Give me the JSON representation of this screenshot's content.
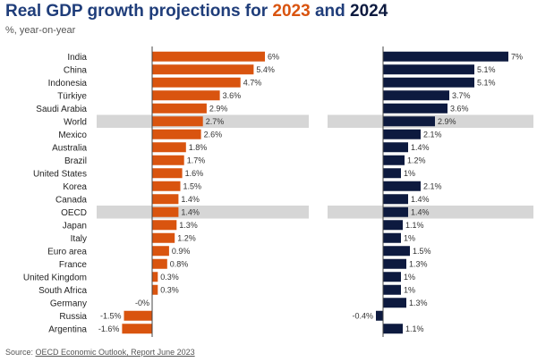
{
  "title": {
    "prefix": "Real GDP growth projections for ",
    "year1": "2023",
    "and": " and ",
    "year2": "2024"
  },
  "subtitle": "%, year-on-year",
  "source": {
    "prefix": "Source: ",
    "link": "OECD Economic Outlook, Report June 2023"
  },
  "chart_data": {
    "type": "bar",
    "orientation": "horizontal",
    "categories": [
      "India",
      "China",
      "Indonesia",
      "Türkiye",
      "Saudi Arabia",
      "World",
      "Mexico",
      "Australia",
      "Brazil",
      "United States",
      "Korea",
      "Canada",
      "OECD",
      "Japan",
      "Italy",
      "Euro area",
      "France",
      "United Kingdom",
      "South Africa",
      "Germany",
      "Russia",
      "Argentina"
    ],
    "highlighted": [
      "World",
      "OECD"
    ],
    "series": [
      {
        "name": "2023",
        "color": "#d9540f",
        "values": [
          6,
          5.4,
          4.7,
          3.6,
          2.9,
          2.7,
          2.6,
          1.8,
          1.7,
          1.6,
          1.5,
          1.4,
          1.4,
          1.3,
          1.2,
          0.9,
          0.8,
          0.3,
          0.3,
          -0.0,
          -1.5,
          -1.6
        ],
        "labels": [
          "6%",
          "5.4%",
          "4.7%",
          "3.6%",
          "2.9%",
          "2.7%",
          "2.6%",
          "1.8%",
          "1.7%",
          "1.6%",
          "1.5%",
          "1.4%",
          "1.4%",
          "1.3%",
          "1.2%",
          "0.9%",
          "0.8%",
          "0.3%",
          "0.3%",
          "-0%",
          "-1.5%",
          "-1.6%"
        ]
      },
      {
        "name": "2024",
        "color": "#0d1a3f",
        "values": [
          7,
          5.1,
          5.1,
          3.7,
          3.6,
          2.9,
          2.1,
          1.4,
          1.2,
          1,
          2.1,
          1.4,
          1.4,
          1.1,
          1,
          1.5,
          1.3,
          1,
          1,
          1.3,
          -0.4,
          1.1
        ],
        "labels": [
          "7%",
          "5.1%",
          "5.1%",
          "3.7%",
          "3.6%",
          "2.9%",
          "2.1%",
          "1.4%",
          "1.2%",
          "1%",
          "2.1%",
          "1.4%",
          "1.4%",
          "1.1%",
          "1%",
          "1.5%",
          "1.3%",
          "1%",
          "1%",
          "1.3%",
          "-0.4%",
          "1.1%"
        ]
      }
    ]
  }
}
